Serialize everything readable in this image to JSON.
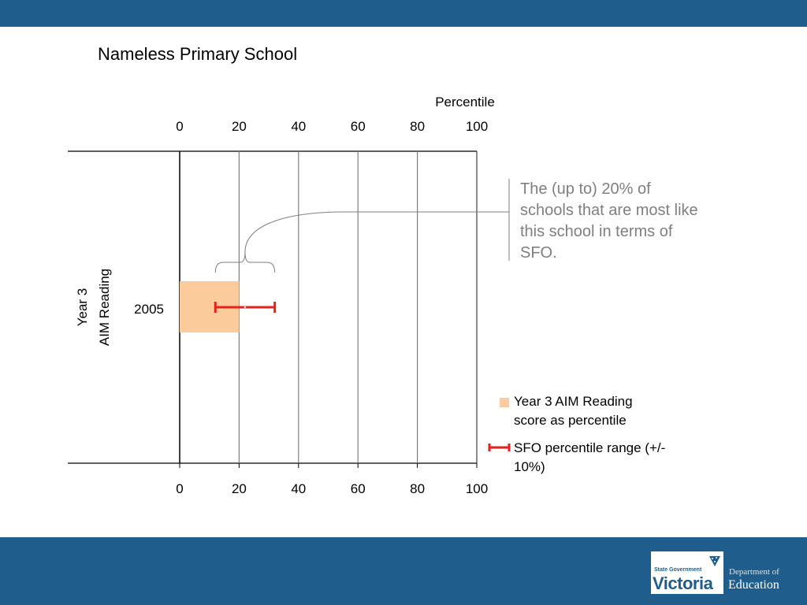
{
  "title": "Nameless Primary School",
  "colors": {
    "band": "#1f5e8c",
    "bar": "#fbcb9c",
    "range": "#e8201c",
    "grid": "#7f7f7f",
    "callout_text": "#7f7f7f"
  },
  "callout": {
    "text": "The (up to) 20% of schools that are most like this school in terms of SFO."
  },
  "legend": {
    "bar_label": "Year 3 AIM Reading score as percentile",
    "range_label": "SFO percentile range (+/- 10%)"
  },
  "logo": {
    "line1": "State Government",
    "line2": "Victoria",
    "dept1": "Department of",
    "dept2": "Education"
  },
  "chart_data": {
    "type": "bar",
    "orientation": "horizontal",
    "title": "Percentile",
    "ylabel_line1": "Year 3",
    "ylabel_line2": "AIM Reading",
    "xlim": [
      0,
      100
    ],
    "ticks": [
      "0",
      "20",
      "40",
      "60",
      "80",
      "100"
    ],
    "category": "2005",
    "bar_value": 20,
    "range": {
      "low": 12,
      "center": 22,
      "high": 32
    },
    "bracket": {
      "from": 12,
      "to": 32
    },
    "grid": true
  }
}
